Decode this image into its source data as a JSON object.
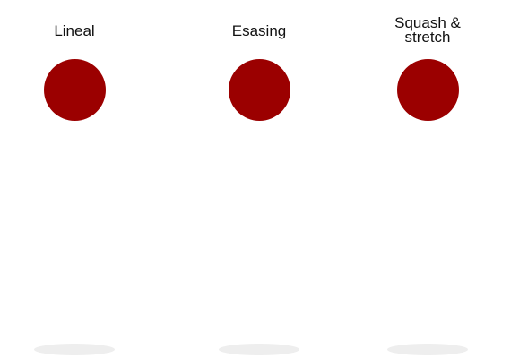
{
  "demos": [
    {
      "label": "Lineal"
    },
    {
      "label": "Esasing"
    },
    {
      "label": "Squash &\nstretch"
    }
  ],
  "colors": {
    "ball": "#9b0000",
    "shadow": "#eeeeee",
    "background": "#ffffff"
  }
}
